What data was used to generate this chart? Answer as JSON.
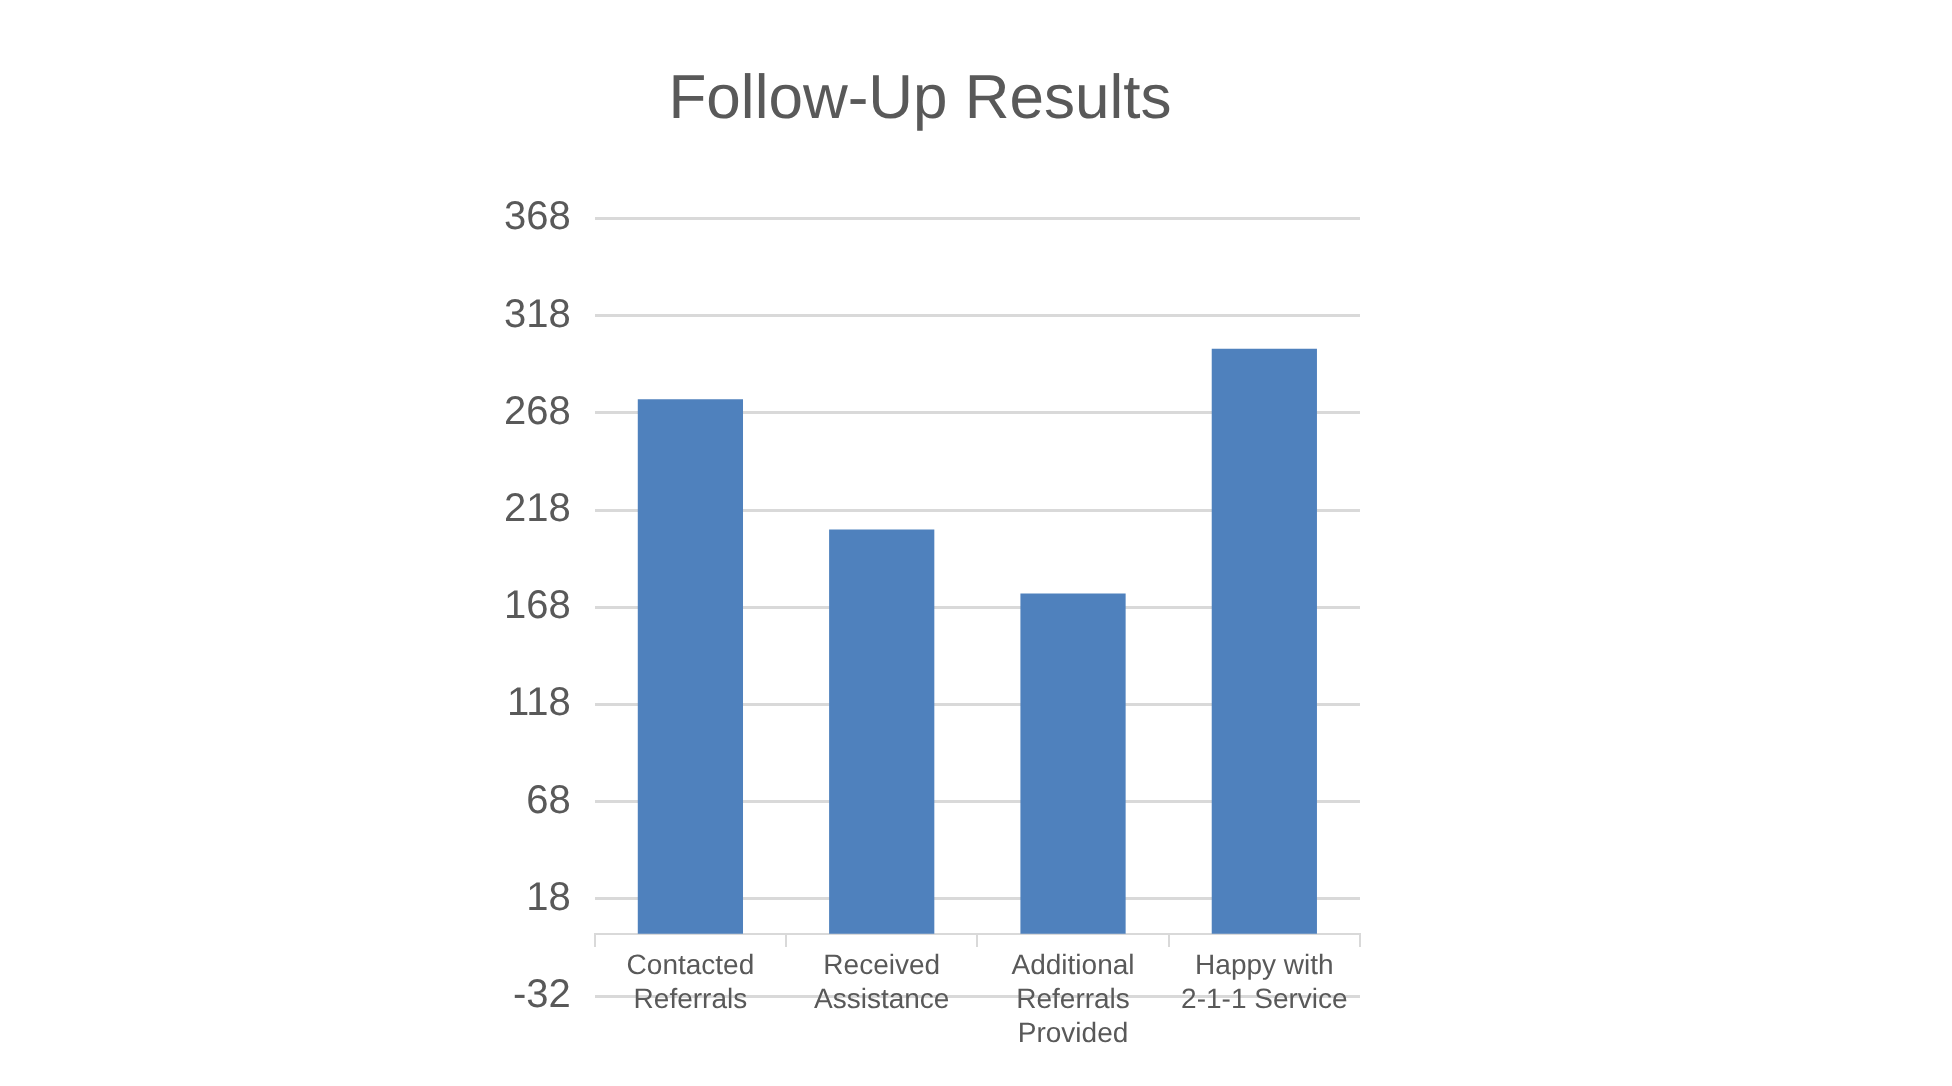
{
  "chart_data": {
    "type": "bar",
    "title": "Follow-Up Results",
    "categories": [
      [
        "Contacted",
        "Referrals"
      ],
      [
        "Received",
        "Assistance"
      ],
      [
        "Additional",
        "Referrals",
        "Provided"
      ],
      [
        "Happy with",
        "2-1-1 Service"
      ]
    ],
    "values": [
      275,
      208,
      175,
      301
    ],
    "color": "#4f81bd",
    "ylim": [
      -32,
      368
    ],
    "yticks": [
      -32,
      18,
      68,
      118,
      168,
      218,
      268,
      318,
      368
    ],
    "grid": "y",
    "legend": false
  }
}
